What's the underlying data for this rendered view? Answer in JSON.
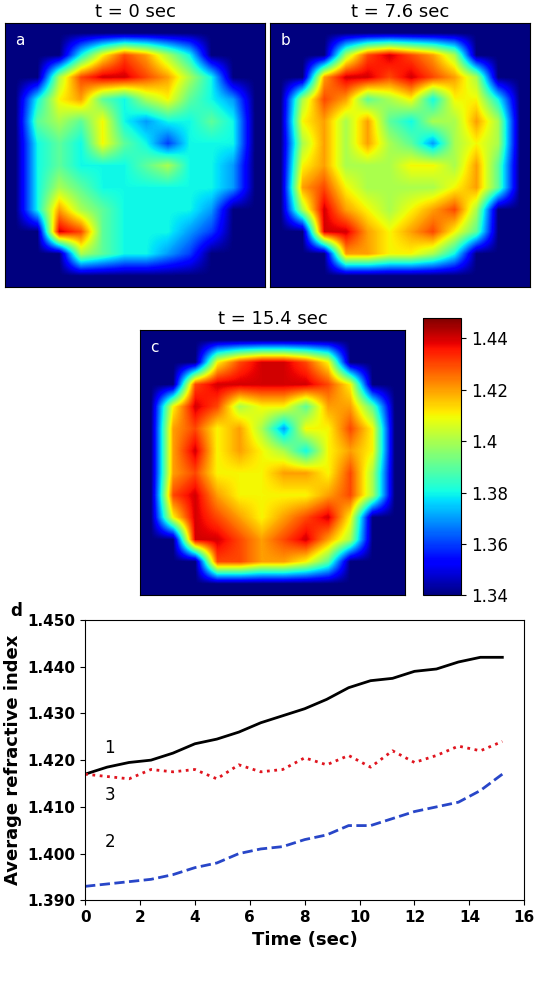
{
  "chart_data": [
    {
      "type": "heatmap",
      "title": "t = 0 sec",
      "panel_label": "a",
      "tick_labels": false,
      "color_range": [
        1.34,
        1.448
      ],
      "cells": [
        [
          1.34,
          1.34,
          1.34,
          1.34,
          1.34,
          1.34,
          1.34,
          1.34,
          1.34,
          1.34,
          1.34,
          1.34
        ],
        [
          1.34,
          1.34,
          1.34,
          1.38,
          1.41,
          1.43,
          1.42,
          1.4,
          1.38,
          1.34,
          1.34,
          1.34
        ],
        [
          1.34,
          1.34,
          1.4,
          1.43,
          1.44,
          1.44,
          1.43,
          1.42,
          1.4,
          1.38,
          1.34,
          1.34
        ],
        [
          1.34,
          1.38,
          1.41,
          1.42,
          1.39,
          1.38,
          1.4,
          1.41,
          1.39,
          1.38,
          1.37,
          1.34
        ],
        [
          1.34,
          1.39,
          1.4,
          1.39,
          1.41,
          1.38,
          1.37,
          1.38,
          1.38,
          1.39,
          1.38,
          1.34
        ],
        [
          1.34,
          1.38,
          1.39,
          1.38,
          1.41,
          1.39,
          1.38,
          1.36,
          1.38,
          1.38,
          1.38,
          1.34
        ],
        [
          1.34,
          1.38,
          1.39,
          1.38,
          1.38,
          1.38,
          1.39,
          1.4,
          1.38,
          1.38,
          1.37,
          1.34
        ],
        [
          1.34,
          1.38,
          1.4,
          1.39,
          1.38,
          1.38,
          1.38,
          1.38,
          1.38,
          1.38,
          1.37,
          1.34
        ],
        [
          1.34,
          1.38,
          1.42,
          1.4,
          1.39,
          1.38,
          1.38,
          1.38,
          1.38,
          1.37,
          1.34,
          1.34
        ],
        [
          1.34,
          1.34,
          1.44,
          1.43,
          1.39,
          1.38,
          1.38,
          1.38,
          1.37,
          1.36,
          1.34,
          1.34
        ],
        [
          1.34,
          1.34,
          1.34,
          1.4,
          1.39,
          1.38,
          1.38,
          1.37,
          1.36,
          1.34,
          1.34,
          1.34
        ],
        [
          1.34,
          1.34,
          1.34,
          1.34,
          1.34,
          1.34,
          1.34,
          1.34,
          1.34,
          1.34,
          1.34,
          1.34
        ]
      ]
    },
    {
      "type": "heatmap",
      "title": "t = 7.6 sec",
      "panel_label": "b",
      "tick_labels": false,
      "color_range": [
        1.34,
        1.448
      ],
      "cells": [
        [
          1.34,
          1.34,
          1.34,
          1.34,
          1.34,
          1.34,
          1.34,
          1.34,
          1.34,
          1.34,
          1.34,
          1.34
        ],
        [
          1.34,
          1.34,
          1.34,
          1.4,
          1.43,
          1.44,
          1.43,
          1.42,
          1.4,
          1.34,
          1.34,
          1.34
        ],
        [
          1.34,
          1.34,
          1.42,
          1.44,
          1.44,
          1.43,
          1.44,
          1.43,
          1.42,
          1.4,
          1.34,
          1.34
        ],
        [
          1.34,
          1.4,
          1.43,
          1.42,
          1.39,
          1.4,
          1.41,
          1.38,
          1.41,
          1.41,
          1.38,
          1.34
        ],
        [
          1.34,
          1.41,
          1.42,
          1.4,
          1.42,
          1.39,
          1.38,
          1.4,
          1.4,
          1.42,
          1.4,
          1.34
        ],
        [
          1.34,
          1.4,
          1.42,
          1.4,
          1.42,
          1.4,
          1.39,
          1.37,
          1.4,
          1.41,
          1.4,
          1.34
        ],
        [
          1.34,
          1.41,
          1.42,
          1.4,
          1.4,
          1.4,
          1.41,
          1.41,
          1.4,
          1.42,
          1.39,
          1.34
        ],
        [
          1.34,
          1.42,
          1.43,
          1.41,
          1.4,
          1.4,
          1.4,
          1.4,
          1.41,
          1.42,
          1.39,
          1.34
        ],
        [
          1.34,
          1.4,
          1.44,
          1.42,
          1.41,
          1.4,
          1.41,
          1.42,
          1.43,
          1.4,
          1.34,
          1.34
        ],
        [
          1.34,
          1.34,
          1.44,
          1.44,
          1.42,
          1.41,
          1.42,
          1.43,
          1.41,
          1.39,
          1.34,
          1.34
        ],
        [
          1.34,
          1.34,
          1.34,
          1.42,
          1.42,
          1.41,
          1.41,
          1.4,
          1.38,
          1.34,
          1.34,
          1.34
        ],
        [
          1.34,
          1.34,
          1.34,
          1.34,
          1.34,
          1.34,
          1.34,
          1.34,
          1.34,
          1.34,
          1.34,
          1.34
        ]
      ]
    },
    {
      "type": "heatmap",
      "title": "t = 15.4 sec",
      "panel_label": "c",
      "tick_labels": false,
      "color_range": [
        1.34,
        1.448
      ],
      "colorbar_ticks": [
        1.34,
        1.36,
        1.38,
        1.4,
        1.42,
        1.44
      ],
      "cells": [
        [
          1.34,
          1.34,
          1.34,
          1.34,
          1.34,
          1.34,
          1.34,
          1.34,
          1.34,
          1.34,
          1.34,
          1.34
        ],
        [
          1.34,
          1.34,
          1.34,
          1.41,
          1.43,
          1.44,
          1.44,
          1.43,
          1.41,
          1.34,
          1.34,
          1.34
        ],
        [
          1.34,
          1.34,
          1.43,
          1.44,
          1.44,
          1.44,
          1.44,
          1.44,
          1.43,
          1.41,
          1.34,
          1.34
        ],
        [
          1.34,
          1.41,
          1.44,
          1.43,
          1.4,
          1.41,
          1.41,
          1.39,
          1.42,
          1.42,
          1.39,
          1.34
        ],
        [
          1.34,
          1.42,
          1.43,
          1.41,
          1.42,
          1.4,
          1.37,
          1.41,
          1.41,
          1.43,
          1.41,
          1.34
        ],
        [
          1.34,
          1.42,
          1.44,
          1.41,
          1.42,
          1.41,
          1.4,
          1.38,
          1.41,
          1.42,
          1.41,
          1.34
        ],
        [
          1.34,
          1.42,
          1.43,
          1.41,
          1.41,
          1.41,
          1.42,
          1.42,
          1.41,
          1.43,
          1.4,
          1.34
        ],
        [
          1.34,
          1.43,
          1.44,
          1.42,
          1.41,
          1.41,
          1.41,
          1.41,
          1.42,
          1.43,
          1.4,
          1.34
        ],
        [
          1.34,
          1.41,
          1.44,
          1.43,
          1.42,
          1.41,
          1.42,
          1.43,
          1.44,
          1.41,
          1.34,
          1.34
        ],
        [
          1.34,
          1.34,
          1.44,
          1.44,
          1.43,
          1.42,
          1.43,
          1.44,
          1.42,
          1.4,
          1.34,
          1.34
        ],
        [
          1.34,
          1.34,
          1.34,
          1.43,
          1.43,
          1.42,
          1.42,
          1.41,
          1.39,
          1.34,
          1.34,
          1.34
        ],
        [
          1.34,
          1.34,
          1.34,
          1.34,
          1.34,
          1.34,
          1.34,
          1.34,
          1.34,
          1.34,
          1.34,
          1.34
        ]
      ]
    },
    {
      "type": "line",
      "panel_label": "d",
      "x_label": "Time (sec)",
      "y_label": "Average refractive index",
      "x": [
        0,
        0.8,
        1.6,
        2.4,
        3.2,
        4.0,
        4.8,
        5.6,
        6.4,
        7.2,
        8.0,
        8.8,
        9.6,
        10.4,
        11.2,
        12.0,
        12.8,
        13.6,
        14.4,
        15.2
      ],
      "series": [
        {
          "color": "#000000",
          "line_style": "solid",
          "values": [
            1.417,
            1.4185,
            1.4195,
            1.42,
            1.4215,
            1.4235,
            1.4245,
            1.426,
            1.428,
            1.4295,
            1.431,
            1.433,
            1.4355,
            1.437,
            1.4375,
            1.439,
            1.4395,
            1.441,
            1.442,
            1.442
          ]
        },
        {
          "color": "#2846c8",
          "line_style": "dashed",
          "values": [
            1.393,
            1.3935,
            1.394,
            1.3945,
            1.3955,
            1.397,
            1.398,
            1.4,
            1.401,
            1.4015,
            1.403,
            1.404,
            1.406,
            1.406,
            1.4075,
            1.409,
            1.41,
            1.411,
            1.4135,
            1.417
          ]
        },
        {
          "color": "#e0141e",
          "line_style": "dotted",
          "values": [
            1.417,
            1.4165,
            1.416,
            1.418,
            1.4175,
            1.418,
            1.416,
            1.419,
            1.4175,
            1.418,
            1.4205,
            1.419,
            1.421,
            1.4185,
            1.422,
            1.4195,
            1.421,
            1.423,
            1.422,
            1.424
          ]
        }
      ],
      "annotations": [
        {
          "text": "1",
          "x": 0.9,
          "y": 1.4225
        },
        {
          "text": "3",
          "x": 0.9,
          "y": 1.4125
        },
        {
          "text": "2",
          "x": 0.9,
          "y": 1.4025
        }
      ],
      "xlim": [
        0,
        16
      ],
      "ylim": [
        1.39,
        1.45
      ],
      "xticks": [
        0,
        2,
        4,
        6,
        8,
        10,
        12,
        14,
        16
      ],
      "yticks": [
        {
          "value": 1.39,
          "label": "1.390"
        },
        {
          "value": 1.4,
          "label": "1.400"
        },
        {
          "value": 1.41,
          "label": "1.410"
        },
        {
          "value": 1.42,
          "label": "1.420"
        },
        {
          "value": 1.43,
          "label": "1.430"
        },
        {
          "value": 1.44,
          "label": "1.440"
        },
        {
          "value": 1.45,
          "label": "1.450"
        }
      ]
    }
  ]
}
